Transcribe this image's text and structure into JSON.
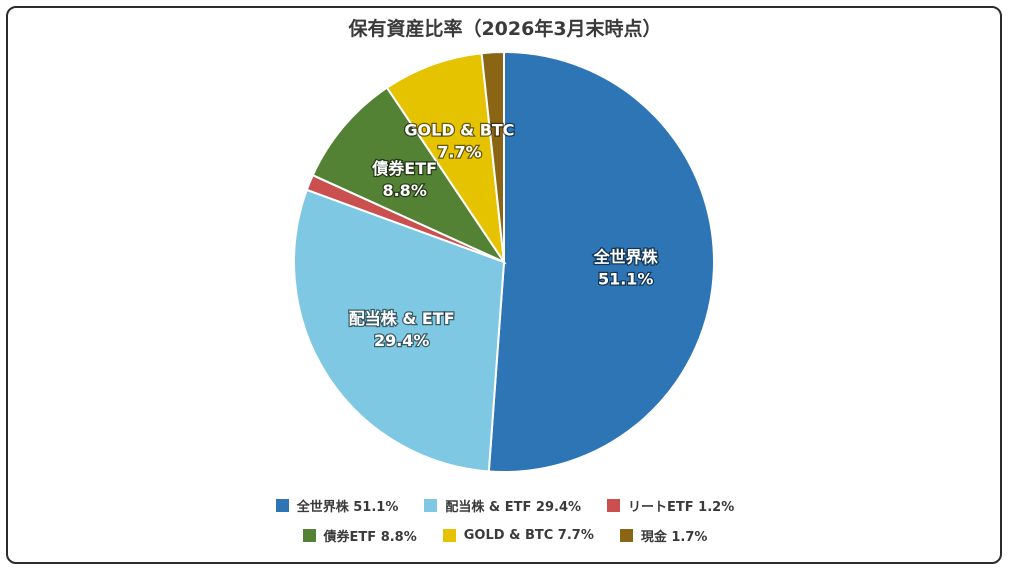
{
  "chart_data": {
    "type": "pie",
    "title": "保有資産比率（2026年3月末時点）",
    "slices": [
      {
        "label": "全世界株",
        "value": 51.1,
        "value_text": "51.1%",
        "legend_text": "全世界株 51.1%",
        "color": "#2e75b6",
        "show_label": true
      },
      {
        "label": "配当株 & ETF",
        "value": 29.4,
        "value_text": "29.4%",
        "legend_text": "配当株 & ETF 29.4%",
        "color": "#7fc8e3",
        "show_label": true
      },
      {
        "label": "リートETF",
        "value": 1.2,
        "value_text": "1.2%",
        "legend_text": "リートETF 1.2%",
        "color": "#c9504f",
        "show_label": false
      },
      {
        "label": "債券ETF",
        "value": 8.8,
        "value_text": "8.8%",
        "legend_text": "債券ETF 8.8%",
        "color": "#548235",
        "show_label": true
      },
      {
        "label": "GOLD & BTC",
        "value": 7.7,
        "value_text": "7.7%",
        "legend_text": "GOLD & BTC 7.7%",
        "color": "#e6c300",
        "show_label": true
      },
      {
        "label": "現金",
        "value": 1.7,
        "value_text": "1.7%",
        "legend_text": "現金 1.7%",
        "color": "#8a6514",
        "show_label": false
      }
    ],
    "start": "top, clockwise",
    "legend_position": "bottom"
  }
}
